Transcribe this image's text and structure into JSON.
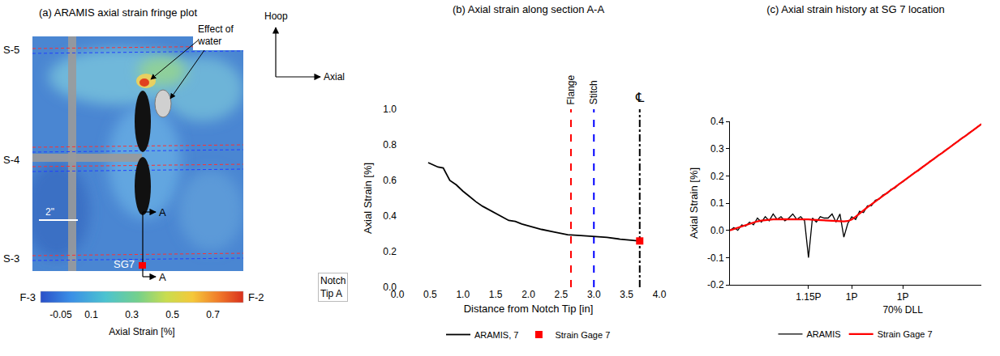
{
  "fringe_plot": {
    "title": "(a) ARAMIS axial strain fringe plot",
    "sections": [
      "S-5",
      "S-4",
      "S-3"
    ],
    "note": "Effect of water",
    "scale_bar": "2\"",
    "strain_gage": "SG7",
    "section_marks": [
      "A",
      "A"
    ],
    "edges": [
      "F-3",
      "F-2"
    ],
    "directions": [
      "Hoop",
      "Axial"
    ],
    "colorbar": {
      "title": "Axial Strain [%]",
      "range": [
        -0.15,
        0.85
      ],
      "ticks": [
        -0.05,
        0.1,
        0.3,
        0.5,
        0.7
      ]
    }
  },
  "chart_data": [
    {
      "type": "line",
      "title": "(b) Axial strain along section A-A",
      "x_label": "Distance from Notch Tip [in]",
      "y_label": "Axial Strain [%]",
      "xlim": [
        0,
        4
      ],
      "xticks": [
        {
          "value": 0,
          "label": "0.0"
        },
        0.5,
        {
          "value": 1,
          "label": "1.0"
        },
        1.5,
        {
          "value": 2,
          "label": "2.0"
        },
        2.5,
        {
          "value": 3,
          "label": "3.0"
        },
        3.5,
        {
          "value": 4,
          "label": "4.0"
        }
      ],
      "ylim": [
        0,
        1
      ],
      "yticks": [
        {
          "value": 0,
          "label": "0.0"
        },
        0.2,
        0.4,
        0.6,
        0.8,
        {
          "value": 1,
          "label": "1.0"
        }
      ],
      "grid": false,
      "legend": "bottom",
      "series": [
        {
          "name": "ARAMIS, 7",
          "type": "line",
          "color": "#000000",
          "line_style": "solid",
          "x": [
            0.47,
            0.55,
            0.62,
            0.7,
            0.8,
            0.9,
            1.0,
            1.1,
            1.2,
            1.3,
            1.4,
            1.5,
            1.6,
            1.7,
            1.8,
            1.9,
            2.0,
            2.2,
            2.4,
            2.6,
            2.8,
            3.0,
            3.2,
            3.4,
            3.6,
            3.7
          ],
          "values": [
            0.7,
            0.685,
            0.675,
            0.67,
            0.6,
            0.575,
            0.54,
            0.51,
            0.48,
            0.455,
            0.435,
            0.415,
            0.395,
            0.375,
            0.37,
            0.355,
            0.345,
            0.325,
            0.31,
            0.295,
            0.29,
            0.285,
            0.28,
            0.27,
            0.265,
            0.26
          ]
        },
        {
          "name": "Strain Gage 7",
          "type": "scatter",
          "color": "#ff0000",
          "marker": "square",
          "x": [
            3.7
          ],
          "values": [
            0.26
          ]
        }
      ],
      "reference_lines": [
        {
          "x": 2.65,
          "label": "Flange",
          "color": "#ff0000",
          "line_style": "dash"
        },
        {
          "x": 3.0,
          "label": "Stitch",
          "color": "#0000ff",
          "line_style": "dash"
        },
        {
          "x": 3.7,
          "label": "℄",
          "color": "#000000",
          "line_style": "dashdot"
        }
      ],
      "annotations": [
        "Notch Tip A"
      ]
    },
    {
      "type": "line",
      "title": "(c) Axial strain history at SG 7 location",
      "y_label": "Axial Strain [%]",
      "categories": [
        null,
        null,
        null,
        null,
        null,
        null,
        null,
        null,
        null,
        null,
        null,
        null,
        null,
        null,
        null,
        null,
        null,
        null,
        null,
        null,
        "1.15P",
        null,
        null,
        null,
        null,
        null,
        null,
        null,
        null,
        null,
        null,
        "1P",
        null,
        null,
        null,
        null,
        null,
        null,
        null,
        null,
        null,
        null,
        null,
        null,
        "1P\n70% DLL",
        null,
        null,
        null,
        null,
        null,
        null,
        null,
        null,
        null,
        null,
        null,
        null,
        null,
        null,
        null,
        null,
        null,
        null,
        null,
        null
      ],
      "ylim": [
        -0.2,
        0.4
      ],
      "yticks": [
        -0.2,
        -0.1,
        {
          "value": 0,
          "label": "0.0"
        },
        0.1,
        0.2,
        0.3,
        0.4
      ],
      "grid": false,
      "legend": "bottom",
      "series": [
        {
          "name": "ARAMIS",
          "color": "#000000",
          "line_style": "solid",
          "values": [
            0.0,
            0.01,
            0.0,
            0.02,
            0.015,
            0.03,
            0.02,
            0.045,
            0.03,
            0.05,
            0.035,
            0.06,
            0.04,
            0.05,
            0.035,
            0.045,
            0.06,
            0.04,
            0.05,
            0.035,
            -0.1,
            0.045,
            0.03,
            0.05,
            0.045,
            0.045,
            0.06,
            0.03,
            0.06,
            -0.025,
            0.025,
            0.05,
            0.04,
            0.07,
            0.065,
            0.09,
            0.09,
            0.11,
            0.115,
            0.13,
            0.135,
            0.15,
            0.155,
            0.17,
            0.178,
            0.19,
            0.2,
            0.212,
            0.22,
            0.233,
            0.242,
            0.254,
            0.262,
            0.275,
            0.284,
            0.296,
            0.305,
            0.317,
            0.326,
            0.338,
            0.347,
            0.359,
            0.368,
            0.38,
            0.39
          ]
        },
        {
          "name": "Strain Gage 7",
          "color": "#ff0000",
          "line_style": "solid",
          "values": [
            0.0,
            0.005,
            0.01,
            0.015,
            0.02,
            0.025,
            0.03,
            0.033,
            0.036,
            0.038,
            0.04,
            0.04,
            0.041,
            0.041,
            0.042,
            0.042,
            0.042,
            0.041,
            0.041,
            0.04,
            0.04,
            0.039,
            0.038,
            0.037,
            0.036,
            0.035,
            0.034,
            0.033,
            0.033,
            0.033,
            0.034,
            0.04,
            0.05,
            0.062,
            0.075,
            0.085,
            0.095,
            0.106,
            0.116,
            0.127,
            0.137,
            0.148,
            0.158,
            0.169,
            0.179,
            0.19,
            0.2,
            0.211,
            0.221,
            0.232,
            0.242,
            0.253,
            0.263,
            0.274,
            0.284,
            0.295,
            0.305,
            0.316,
            0.326,
            0.337,
            0.347,
            0.358,
            0.368,
            0.379,
            0.39
          ]
        }
      ]
    }
  ]
}
